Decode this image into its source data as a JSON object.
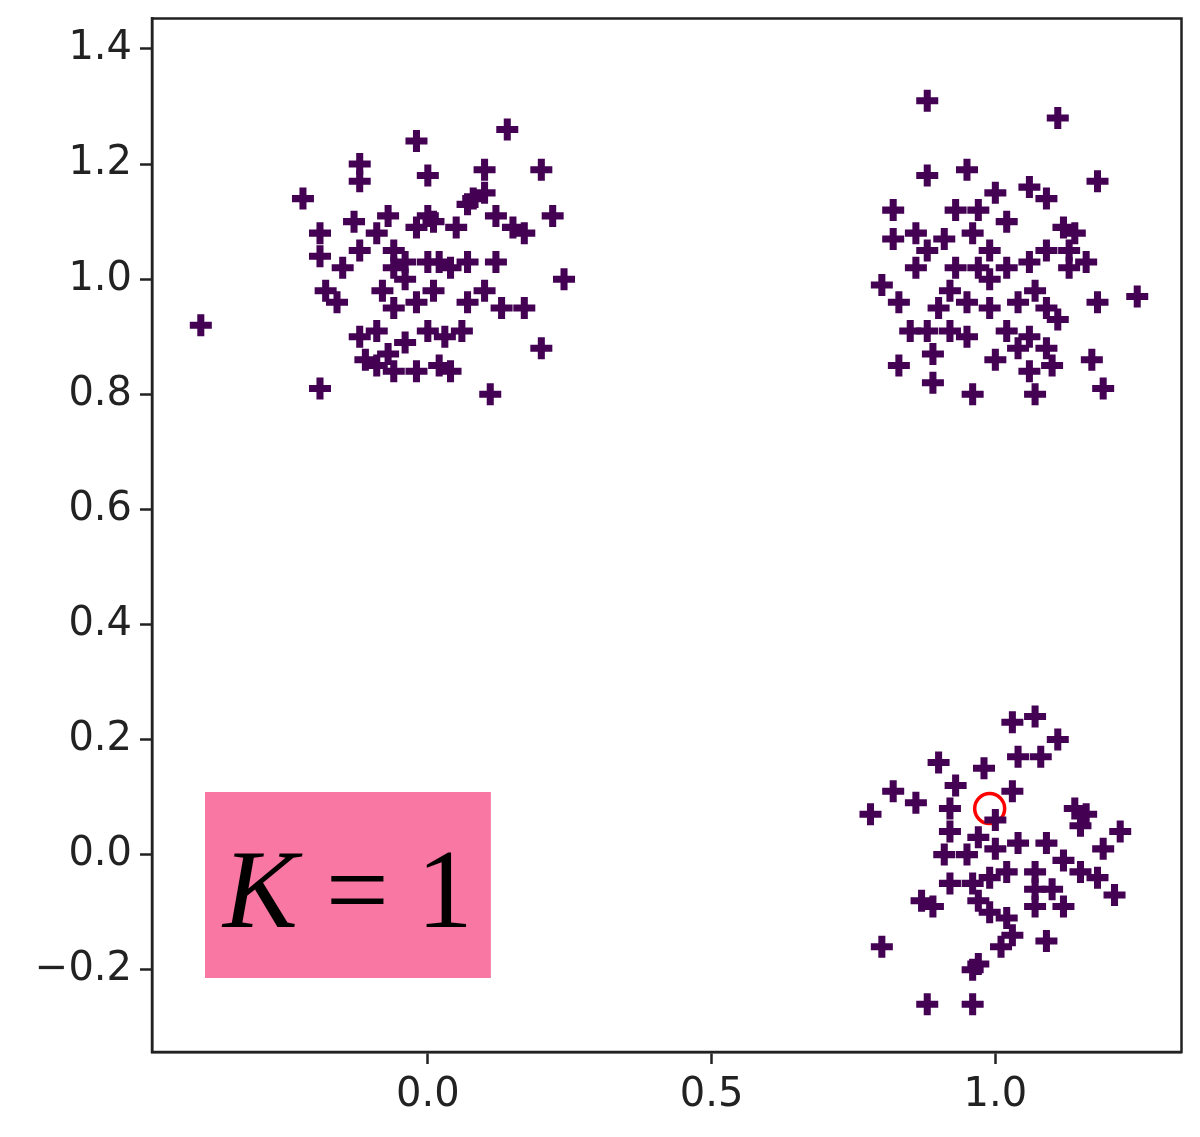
{
  "chart_data": {
    "type": "scatter",
    "marker": "cross",
    "xlim": [
      -0.486,
      1.328
    ],
    "ylim": [
      -0.343,
      1.453
    ],
    "xticks": [
      {
        "value": 0,
        "label": "0.0"
      },
      {
        "value": 0.5,
        "label": "0.5"
      },
      {
        "value": 1,
        "label": "1.0"
      }
    ],
    "yticks": [
      {
        "value": -0.2,
        "label": "−0.2"
      },
      {
        "value": 0,
        "label": "0.0"
      },
      {
        "value": 0.2,
        "label": "0.2"
      },
      {
        "value": 0.4,
        "label": "0.4"
      },
      {
        "value": 0.6,
        "label": "0.6"
      },
      {
        "value": 0.8,
        "label": "0.8"
      },
      {
        "value": 1,
        "label": "1.0"
      },
      {
        "value": 1.2,
        "label": "1.2"
      },
      {
        "value": 1.4,
        "label": "1.4"
      }
    ],
    "series": [
      {
        "color": "#440154",
        "x": [
          -0.4,
          -0.19,
          0.14,
          -0.02,
          0.2,
          -0.22,
          0.24,
          0.22,
          0.2,
          0.11,
          -0.12,
          0.0,
          0.1,
          -0.12,
          -0.19,
          -0.19,
          -0.15,
          -0.18,
          -0.16,
          -0.13,
          -0.12,
          -0.09,
          -0.07,
          -0.06,
          -0.06,
          -0.02,
          0.0,
          0.01,
          0.02,
          0.05,
          0.07,
          0.08,
          0.1,
          0.12,
          0.15,
          0.17,
          0.17,
          0.13,
          0.1,
          0.07,
          0.04,
          0.01,
          -0.02,
          -0.04,
          -0.06,
          -0.09,
          -0.12,
          -0.11,
          -0.07,
          -0.04,
          0.0,
          0.03,
          0.06,
          0.02,
          -0.02,
          -0.06,
          -0.09,
          0.04,
          -0.04,
          0.0,
          -0.08,
          0.07,
          0.12
        ],
        "values": [
          0.92,
          0.81,
          1.26,
          1.24,
          1.19,
          1.14,
          1.0,
          1.11,
          0.88,
          0.8,
          1.2,
          1.18,
          1.19,
          1.17,
          1.08,
          1.04,
          1.02,
          0.98,
          0.96,
          1.1,
          1.05,
          1.08,
          1.11,
          1.02,
          1.05,
          1.09,
          1.11,
          1.1,
          1.03,
          1.09,
          1.13,
          1.14,
          1.15,
          1.11,
          1.09,
          1.08,
          0.95,
          0.95,
          0.98,
          0.96,
          1.02,
          0.98,
          0.96,
          1.0,
          0.95,
          0.91,
          0.9,
          0.86,
          0.87,
          0.89,
          0.91,
          0.9,
          0.91,
          0.85,
          0.84,
          0.84,
          0.85,
          0.84,
          1.03,
          1.03,
          0.98,
          1.03,
          1.03
        ]
      },
      {
        "color": "#440154",
        "x": [
          0.88,
          1.11,
          1.18,
          1.25,
          1.18,
          0.83,
          0.89,
          0.96,
          1.07,
          1.19,
          1.17,
          0.95,
          0.88,
          0.82,
          0.8,
          0.83,
          0.86,
          0.88,
          0.91,
          0.93,
          0.97,
          1.0,
          1.02,
          1.06,
          1.09,
          1.12,
          1.14,
          1.16,
          1.13,
          1.09,
          1.06,
          1.02,
          0.99,
          0.96,
          0.93,
          0.92,
          0.9,
          0.95,
          0.99,
          1.02,
          1.06,
          1.09,
          1.11,
          1.09,
          1.04,
          1.0,
          0.95,
          0.92,
          0.88,
          0.85,
          0.89,
          0.99,
          1.04,
          1.07,
          1.13,
          0.82,
          0.86,
          1.06,
          1.1,
          0.97
        ],
        "values": [
          1.31,
          1.28,
          1.17,
          0.97,
          0.96,
          0.85,
          0.82,
          0.8,
          0.8,
          0.81,
          0.86,
          1.19,
          1.18,
          1.12,
          0.99,
          0.96,
          1.08,
          1.05,
          1.07,
          1.12,
          1.12,
          1.15,
          1.1,
          1.16,
          1.14,
          1.09,
          1.08,
          1.03,
          1.02,
          1.05,
          1.03,
          1.02,
          1.05,
          1.08,
          1.02,
          0.98,
          0.95,
          0.96,
          0.95,
          0.91,
          0.9,
          0.95,
          0.93,
          0.88,
          0.88,
          0.86,
          0.9,
          0.91,
          0.91,
          0.91,
          0.87,
          1.0,
          0.96,
          0.98,
          1.05,
          1.07,
          1.02,
          0.84,
          0.85,
          1.02
        ]
      },
      {
        "color": "#440154",
        "x": [
          1.07,
          1.03,
          1.11,
          0.9,
          0.82,
          0.86,
          0.78,
          0.98,
          1.04,
          1.08,
          0.93,
          1.03,
          1.14,
          1.16,
          1.22,
          1.19,
          0.92,
          0.92,
          0.91,
          0.95,
          1.0,
          1.04,
          1.09,
          1.12,
          1.15,
          1.07,
          1.02,
          0.99,
          0.96,
          0.92,
          0.87,
          0.89,
          1.21,
          1.18,
          1.12,
          1.07,
          1.02,
          0.99,
          0.97,
          1.03,
          1.09,
          1.01,
          0.8,
          0.96,
          0.97,
          0.88,
          0.96,
          1.07,
          1.1,
          1.15,
          1.0,
          0.97
        ],
        "values": [
          0.24,
          0.23,
          0.2,
          0.16,
          0.11,
          0.09,
          0.07,
          0.15,
          0.17,
          0.17,
          0.12,
          0.11,
          0.08,
          0.07,
          0.04,
          0.01,
          0.08,
          0.04,
          0.0,
          0.0,
          0.01,
          0.02,
          0.02,
          -0.01,
          -0.03,
          -0.03,
          -0.03,
          -0.04,
          -0.05,
          -0.05,
          -0.08,
          -0.09,
          -0.07,
          -0.04,
          -0.09,
          -0.09,
          -0.11,
          -0.1,
          -0.08,
          -0.14,
          -0.15,
          -0.16,
          -0.16,
          -0.2,
          -0.19,
          -0.26,
          -0.26,
          -0.06,
          -0.06,
          0.05,
          0.06,
          0.03
        ]
      },
      {
        "color": "#ff0000",
        "marker": "circle",
        "x": [
          0.99
        ],
        "values": [
          0.08
        ]
      }
    ],
    "annotations": [
      "K = 1"
    ]
  }
}
